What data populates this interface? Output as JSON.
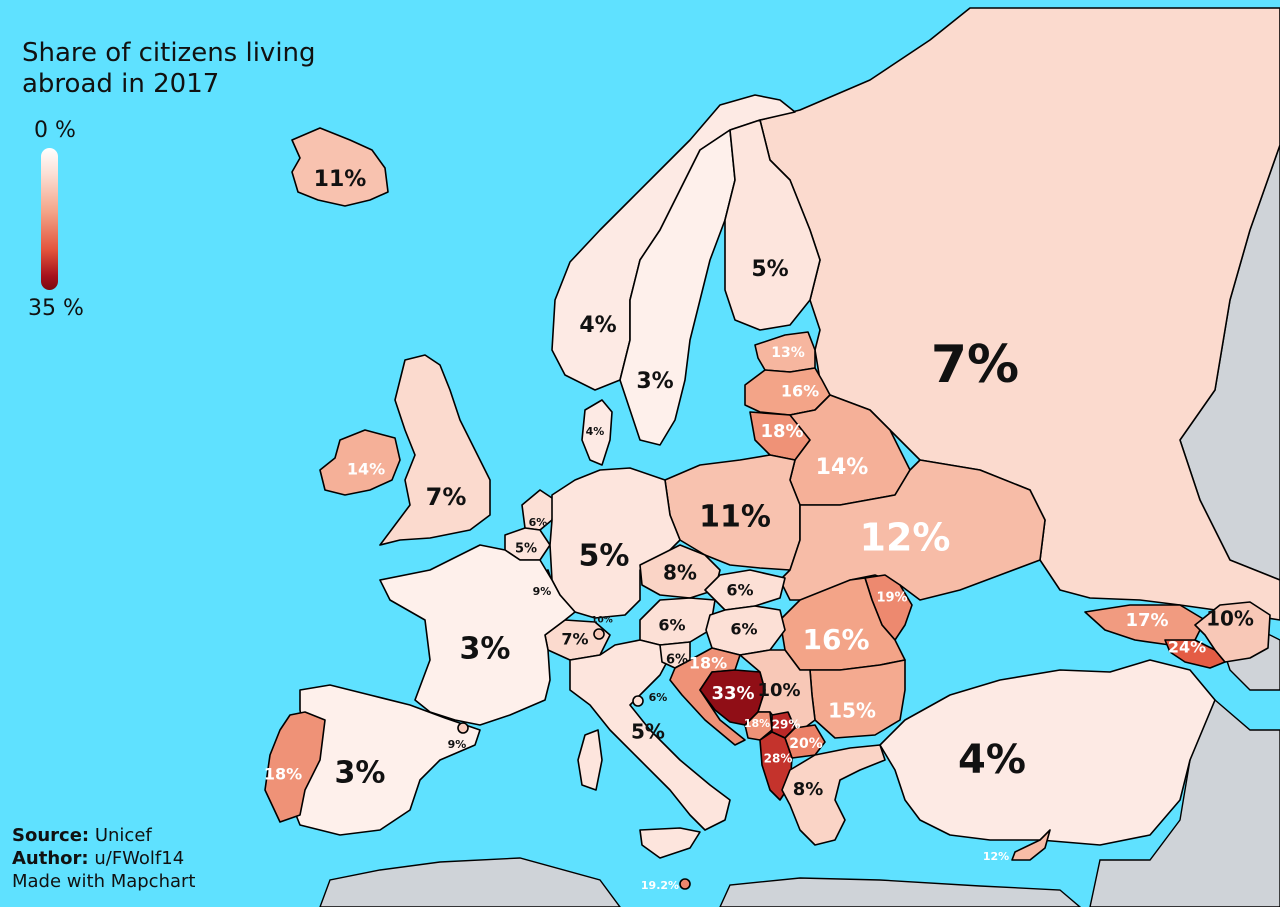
{
  "title": "Share of citizens living abroad in 2017",
  "legend": {
    "min_label": "0 %",
    "max_label": "35 %"
  },
  "credits": {
    "source_label": "Source:",
    "source": "Unicef",
    "author_label": "Author:",
    "author": "u/FWolf14",
    "made_with": "Made with Mapchart"
  },
  "colors": {
    "sea": "#5fe1ff",
    "non_europe": "#cfd3d8",
    "border": "#000000",
    "scale_low": "#ffffff",
    "scale_high": "#7a0a10"
  },
  "regions": [
    {
      "id": "russia",
      "value": 7,
      "label": "7%"
    },
    {
      "id": "iceland",
      "value": 11,
      "label": "11%"
    },
    {
      "id": "norway",
      "value": 4,
      "label": "4%"
    },
    {
      "id": "sweden",
      "value": 3,
      "label": "3%"
    },
    {
      "id": "finland",
      "value": 5,
      "label": "5%"
    },
    {
      "id": "estonia",
      "value": 13,
      "label": "13%"
    },
    {
      "id": "latvia",
      "value": 16,
      "label": "16%"
    },
    {
      "id": "lithuania",
      "value": 18,
      "label": "18%"
    },
    {
      "id": "belarus",
      "value": 14,
      "label": "14%"
    },
    {
      "id": "poland",
      "value": 11,
      "label": "11%"
    },
    {
      "id": "ukraine",
      "value": 12,
      "label": "12%"
    },
    {
      "id": "moldova",
      "value": 19,
      "label": "19%"
    },
    {
      "id": "romania",
      "value": 16,
      "label": "16%"
    },
    {
      "id": "bulgaria",
      "value": 15,
      "label": "15%"
    },
    {
      "id": "turkey",
      "value": 4,
      "label": "4%"
    },
    {
      "id": "georgia",
      "value": 17,
      "label": "17%"
    },
    {
      "id": "armenia",
      "value": 24,
      "label": "24%"
    },
    {
      "id": "azerbaijan",
      "value": 10,
      "label": "10%"
    },
    {
      "id": "ireland",
      "value": 14,
      "label": "14%"
    },
    {
      "id": "uk",
      "value": 7,
      "label": "7%"
    },
    {
      "id": "denmark",
      "value": 4,
      "label": "4%"
    },
    {
      "id": "netherlands",
      "value": 6,
      "label": "6%"
    },
    {
      "id": "belgium",
      "value": 5,
      "label": "5%"
    },
    {
      "id": "luxembourg",
      "value": 9,
      "label": "9%"
    },
    {
      "id": "germany",
      "value": 5,
      "label": "5%"
    },
    {
      "id": "czechia",
      "value": 8,
      "label": "8%"
    },
    {
      "id": "slovakia",
      "value": 6,
      "label": "6%"
    },
    {
      "id": "austria",
      "value": 6,
      "label": "6%"
    },
    {
      "id": "hungary",
      "value": 6,
      "label": "6%"
    },
    {
      "id": "switzerland",
      "value": 7,
      "label": "7%"
    },
    {
      "id": "liechtenstein",
      "value": 10,
      "label": "10%"
    },
    {
      "id": "france",
      "value": 3,
      "label": "3%"
    },
    {
      "id": "spain",
      "value": 3,
      "label": "3%"
    },
    {
      "id": "andorra",
      "value": 9,
      "label": "9%"
    },
    {
      "id": "portugal",
      "value": 18,
      "label": "18%"
    },
    {
      "id": "italy",
      "value": 5,
      "label": "5%"
    },
    {
      "id": "san_marino",
      "value": 6,
      "label": "6%"
    },
    {
      "id": "slovenia",
      "value": 6,
      "label": "6%"
    },
    {
      "id": "croatia",
      "value": 18,
      "label": "18%"
    },
    {
      "id": "bosnia",
      "value": 33,
      "label": "33%"
    },
    {
      "id": "serbia",
      "value": 10,
      "label": "10%"
    },
    {
      "id": "montenegro",
      "value": 18,
      "label": "18%"
    },
    {
      "id": "kosovo",
      "value": 29,
      "label": "29%"
    },
    {
      "id": "macedonia",
      "value": 20,
      "label": "20%"
    },
    {
      "id": "albania",
      "value": 28,
      "label": "28%"
    },
    {
      "id": "greece",
      "value": 8,
      "label": "8%"
    },
    {
      "id": "cyprus",
      "value": 12,
      "label": "12%"
    },
    {
      "id": "malta",
      "value": 19.2,
      "label": "19.2%"
    }
  ]
}
